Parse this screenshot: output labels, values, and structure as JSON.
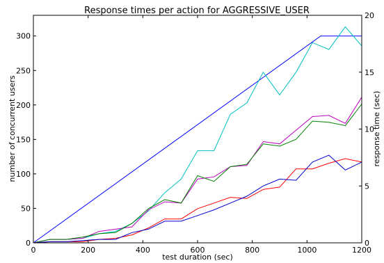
{
  "chart_data": {
    "type": "line",
    "title": "Response times per action for AGGRESSIVE_USER",
    "xlabel": "test duration (sec)",
    "ylabel": "number of concurrent users",
    "y2label": "response time (sec)",
    "xlim": [
      0,
      1200
    ],
    "ylim": [
      0,
      330
    ],
    "y2lim": [
      0,
      20
    ],
    "xticks": [
      0,
      200,
      400,
      600,
      800,
      1000,
      1200
    ],
    "yticks": [
      0,
      50,
      100,
      150,
      200,
      250,
      300
    ],
    "y2ticks": [
      0,
      5,
      10,
      15,
      20
    ],
    "grid": false,
    "legend": "none",
    "series": [
      {
        "axis": "left",
        "color": "#0000ff",
        "x": [
          0,
          1050,
          1200
        ],
        "y": [
          0,
          300,
          300
        ]
      },
      {
        "axis": "right",
        "color": "#00bfbf",
        "x": [
          0,
          60,
          120,
          180,
          240,
          300,
          360,
          420,
          480,
          540,
          600,
          660,
          720,
          780,
          840,
          900,
          960,
          1020,
          1080,
          1140,
          1200
        ],
        "y": [
          0,
          0.3,
          0.3,
          0.4,
          0.8,
          1.0,
          1.7,
          2.8,
          4.4,
          5.6,
          8.1,
          8.1,
          11.3,
          12.3,
          15.0,
          13.0,
          15.0,
          17.6,
          17.0,
          19.0,
          17.3
        ]
      },
      {
        "axis": "right",
        "color": "#bf00bf",
        "x": [
          0,
          60,
          120,
          180,
          240,
          300,
          360,
          420,
          480,
          540,
          600,
          660,
          720,
          780,
          840,
          900,
          960,
          1020,
          1080,
          1140,
          1200
        ],
        "y": [
          0,
          0.3,
          0.3,
          0.4,
          1.0,
          1.2,
          1.4,
          2.9,
          3.6,
          3.5,
          5.6,
          5.8,
          6.7,
          6.8,
          8.9,
          8.7,
          9.9,
          11.1,
          11.2,
          10.5,
          12.8
        ]
      },
      {
        "axis": "right",
        "color": "#008000",
        "x": [
          0,
          60,
          120,
          180,
          240,
          300,
          360,
          420,
          480,
          540,
          600,
          660,
          720,
          780,
          840,
          900,
          960,
          1020,
          1080,
          1140,
          1200
        ],
        "y": [
          0,
          0.3,
          0.3,
          0.5,
          0.8,
          0.9,
          1.7,
          3.0,
          3.8,
          3.5,
          5.9,
          5.4,
          6.7,
          6.9,
          8.7,
          8.5,
          9.1,
          10.7,
          10.6,
          10.3,
          12.2
        ]
      },
      {
        "axis": "right",
        "color": "#ff0000",
        "x": [
          0,
          60,
          120,
          180,
          240,
          300,
          360,
          420,
          480,
          540,
          600,
          660,
          720,
          780,
          840,
          900,
          960,
          1020,
          1080,
          1140,
          1200
        ],
        "y": [
          0,
          0.1,
          0.1,
          0.1,
          0.3,
          0.4,
          0.7,
          1.3,
          2.1,
          2.1,
          3.0,
          3.5,
          4.0,
          3.9,
          4.7,
          4.9,
          6.5,
          6.5,
          7.0,
          7.4,
          7.1
        ]
      },
      {
        "axis": "right",
        "color": "#0000cc",
        "x": [
          0,
          60,
          120,
          180,
          240,
          300,
          360,
          420,
          480,
          540,
          600,
          660,
          720,
          780,
          840,
          900,
          960,
          1020,
          1080,
          1140,
          1200
        ],
        "y": [
          0,
          0.1,
          0.1,
          0.2,
          0.3,
          0.3,
          0.9,
          1.2,
          1.9,
          1.9,
          2.4,
          2.9,
          3.5,
          4.1,
          5.0,
          5.6,
          5.5,
          7.1,
          7.7,
          6.4,
          7.1
        ]
      }
    ]
  }
}
